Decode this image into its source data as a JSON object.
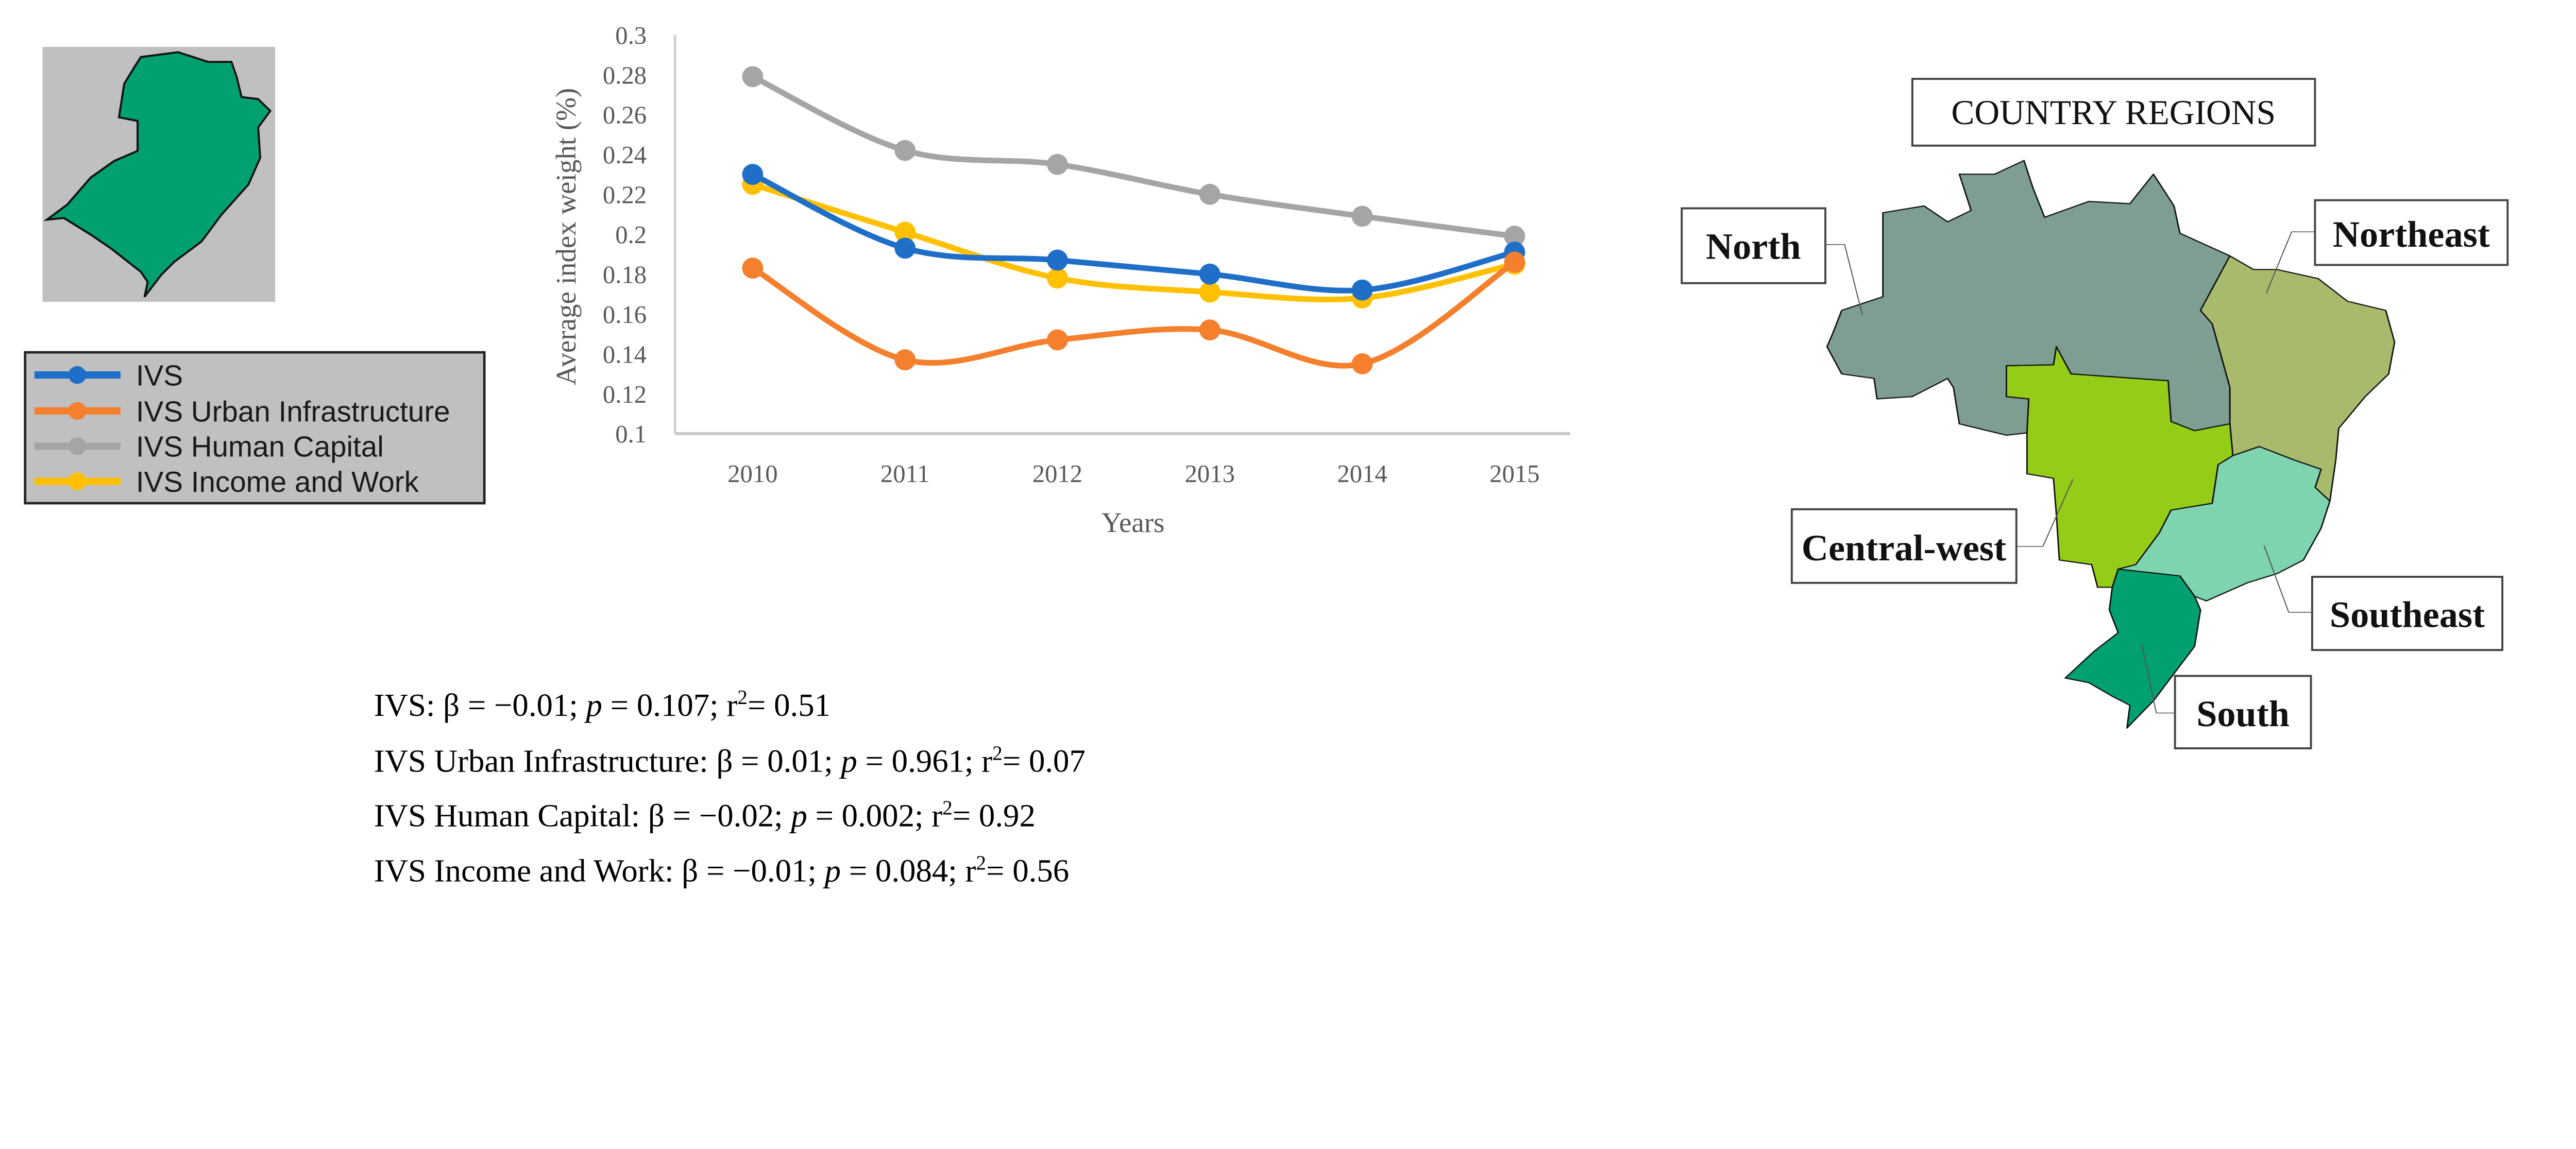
{
  "chart_data": {
    "type": "line",
    "title": "",
    "xlabel": "Years",
    "ylabel": "Average index weight (%)",
    "categories": [
      "2010",
      "2011",
      "2012",
      "2013",
      "2014",
      "2015"
    ],
    "ylim": [
      0.1,
      0.3
    ],
    "yticks": [
      "0.1",
      "0.12",
      "0.14",
      "0.16",
      "0.18",
      "0.2",
      "0.22",
      "0.24",
      "0.26",
      "0.28",
      "0.3"
    ],
    "grid": false,
    "smoothed": true,
    "legend_placement": "left",
    "series": [
      {
        "name": "IVS",
        "color": "#1f6fc8",
        "values": [
          0.23,
          0.193,
          0.187,
          0.18,
          0.172,
          0.191
        ]
      },
      {
        "name": "IVS Urban Infrastructure",
        "color": "#f47f2d",
        "values": [
          0.183,
          0.137,
          0.147,
          0.152,
          0.135,
          0.186
        ]
      },
      {
        "name": "IVS Human Capital",
        "color": "#a5a5a5",
        "values": [
          0.279,
          0.242,
          0.235,
          0.22,
          0.209,
          0.199
        ]
      },
      {
        "name": "IVS Income and Work",
        "color": "#ffc000",
        "values": [
          0.225,
          0.201,
          0.178,
          0.171,
          0.168,
          0.185
        ]
      }
    ]
  },
  "stats": [
    {
      "label": "IVS:",
      "beta": "β = −0.01;",
      "p_sym": "p",
      "p": "= 0.107;",
      "r": "r",
      "sup": "2",
      "r2": "= 0.51"
    },
    {
      "label": "IVS Urban Infrastructure:",
      "beta": "β = 0.01;",
      "p_sym": "p",
      "p": "= 0.961;",
      "r": "r",
      "sup": "2",
      "r2": "= 0.07"
    },
    {
      "label": "IVS Human Capital:",
      "beta": "β = −0.02;",
      "p_sym": "p",
      "p": "= 0.002;",
      "r": "r",
      "sup": "2",
      "r2": "= 0.92"
    },
    {
      "label": "IVS Income and Work:",
      "beta": "β = −0.01;",
      "p_sym": "p",
      "p": "= 0.084;",
      "r": "r",
      "sup": "2",
      "r2": "= 0.56"
    }
  ],
  "inset_map": {
    "region_color": "#00a070",
    "background": "#c0c0c0"
  },
  "regions_map": {
    "title": "COUNTRY REGIONS",
    "regions": [
      {
        "name": "North",
        "color": "#7d9e91"
      },
      {
        "name": "Northeast",
        "color": "#a8bb6c"
      },
      {
        "name": "Central-west",
        "color": "#95cc17"
      },
      {
        "name": "Southeast",
        "color": "#7fd4b0"
      },
      {
        "name": "South",
        "color": "#00a070"
      }
    ]
  }
}
